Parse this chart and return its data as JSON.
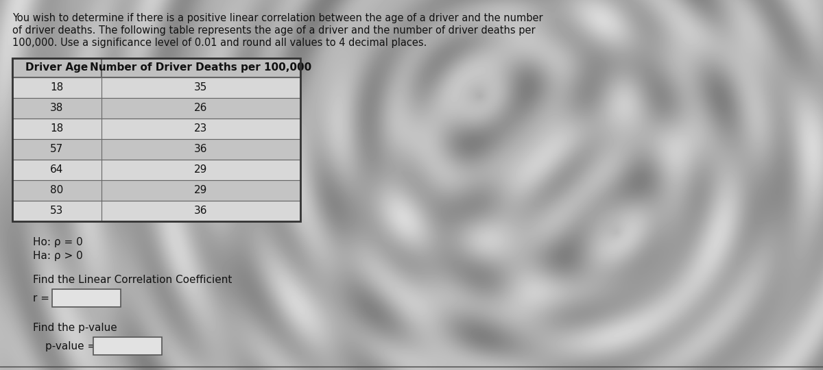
{
  "paragraph_lines": [
    "You wish to determine if there is a positive linear correlation between the age of a driver and the number",
    "of driver deaths. The following table represents the age of a driver and the number of driver deaths per",
    "100,000. Use a significance level of 0.01 and round all values to 4 decimal places."
  ],
  "table_headers": [
    "Driver Age",
    "Number of Driver Deaths per 100,000"
  ],
  "table_data": [
    [
      18,
      35
    ],
    [
      38,
      26
    ],
    [
      18,
      23
    ],
    [
      57,
      36
    ],
    [
      64,
      29
    ],
    [
      80,
      29
    ],
    [
      53,
      36
    ]
  ],
  "ho_text": "Ho: ρ = 0",
  "ha_text": "Ha: ρ > 0",
  "find_r_label": "Find the Linear Correlation Coefficient",
  "r_label": "r =",
  "find_p_label": "Find the p-value",
  "p_label": "p-value =",
  "bg_color_light": "#c8c8c8",
  "bg_color_dark": "#888888",
  "table_row_light": "#d8d8d8",
  "table_row_dark": "#c4c4c4",
  "table_header_bg": "#c0c0c0",
  "table_border_color": "#666666",
  "text_color": "#111111",
  "input_box_bg": "#e2e2e2",
  "input_box_border": "#555555",
  "font_size_para": 10.5,
  "font_size_table_header": 11,
  "font_size_table_data": 11,
  "font_size_labels": 11
}
